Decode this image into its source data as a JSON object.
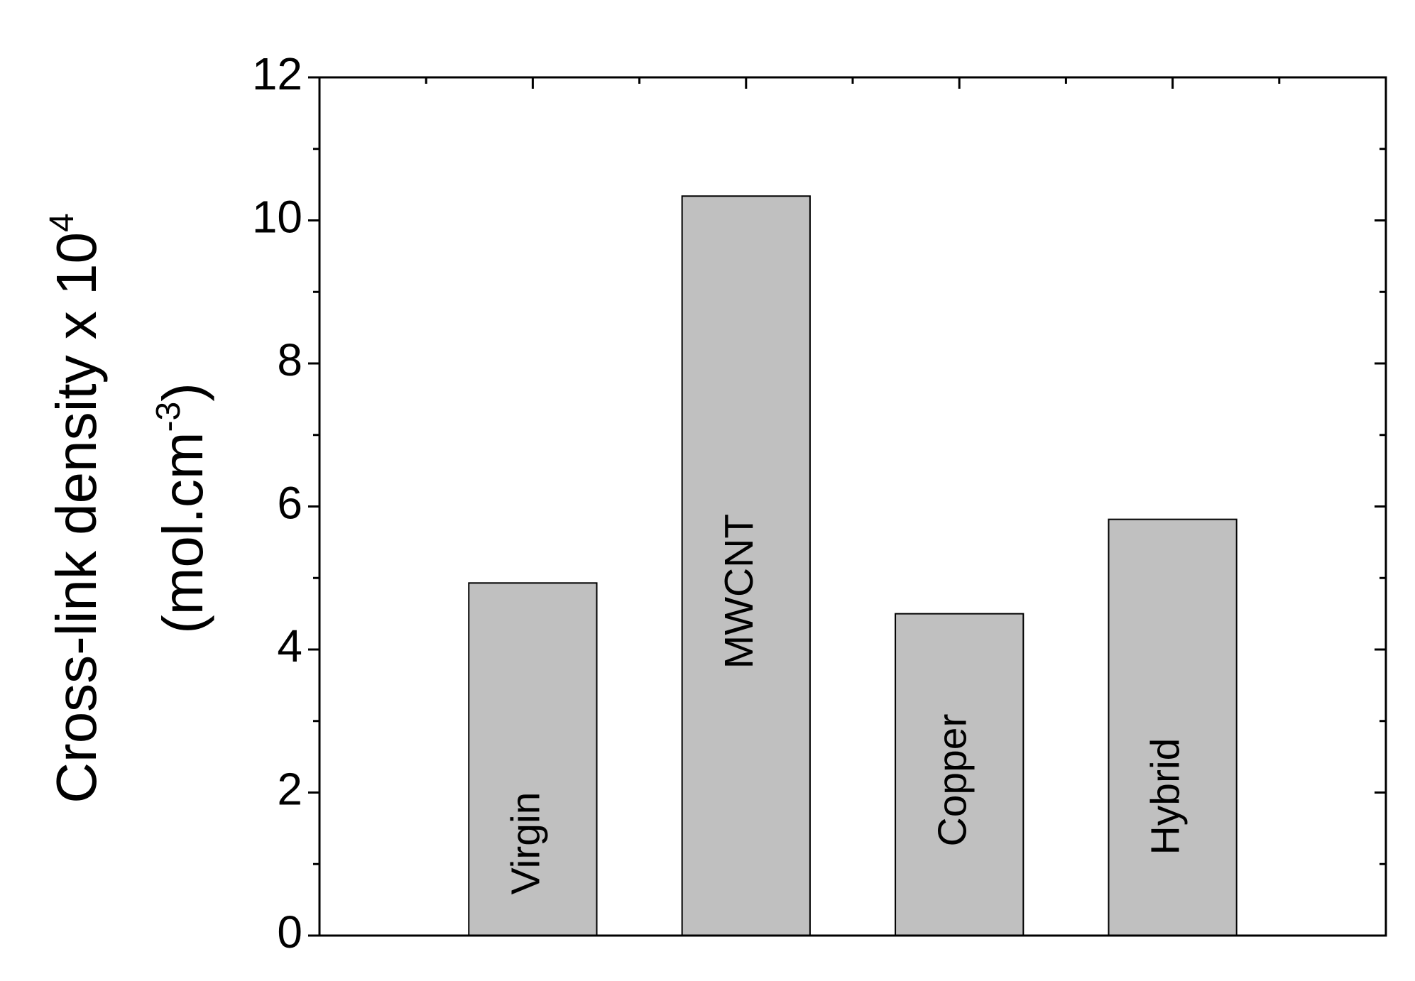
{
  "chart_data": {
    "type": "bar",
    "ylabel": {
      "line1": "Cross-link density x 10",
      "line1_sup": "4",
      "line2": "(mol.cm",
      "line2_sup": "-3",
      "line2_end": ")"
    },
    "categories": [
      "Virgin",
      "MWCNT",
      "Copper",
      "Hybrid"
    ],
    "values": [
      4.93,
      10.34,
      4.5,
      5.82
    ],
    "color": "#c0c0c0",
    "ylim": [
      0,
      12
    ],
    "yticks": [
      0,
      2,
      4,
      6,
      8,
      10,
      12
    ],
    "yminor_ticks": [
      1,
      3,
      5,
      7,
      9,
      11
    ],
    "grid": false
  }
}
